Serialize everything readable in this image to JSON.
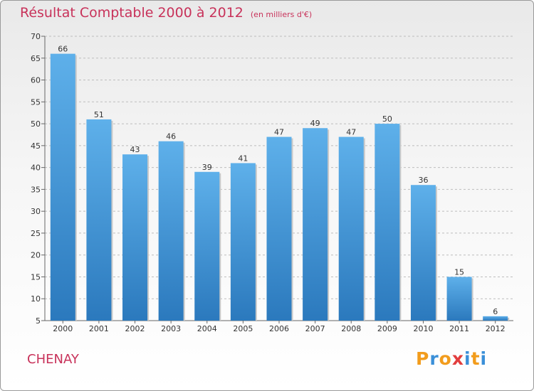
{
  "header": {
    "title": "Résultat Comptable 2000 à 2012",
    "unit": "(en milliers d'€)"
  },
  "footer": {
    "city": "CHENAY",
    "logo": [
      "P",
      "r",
      "o",
      "x",
      "i",
      "t",
      "i"
    ]
  },
  "colors": {
    "title": "#c8325a",
    "bar_top": "#5eb0ea",
    "bar_bottom": "#2b79bd",
    "logo": [
      "#f29c1c",
      "#3a8fd8",
      "#f29c1c",
      "#e23d3d",
      "#3a8fd8",
      "#f29c1c",
      "#3a8fd8"
    ]
  },
  "chart_data": {
    "type": "bar",
    "title": "Résultat Comptable 2000 à 2012",
    "subtitle": "(en milliers d'€)",
    "categories": [
      "2000",
      "2001",
      "2002",
      "2003",
      "2004",
      "2005",
      "2006",
      "2007",
      "2008",
      "2009",
      "2010",
      "2011",
      "2012"
    ],
    "values": [
      66,
      51,
      43,
      46,
      39,
      41,
      47,
      49,
      47,
      50,
      36,
      15,
      6
    ],
    "ylim": [
      5,
      70
    ],
    "yticks": [
      5,
      10,
      15,
      20,
      25,
      30,
      35,
      40,
      45,
      50,
      55,
      60,
      65,
      70
    ],
    "xlabel": "",
    "ylabel": "",
    "grid": true
  }
}
